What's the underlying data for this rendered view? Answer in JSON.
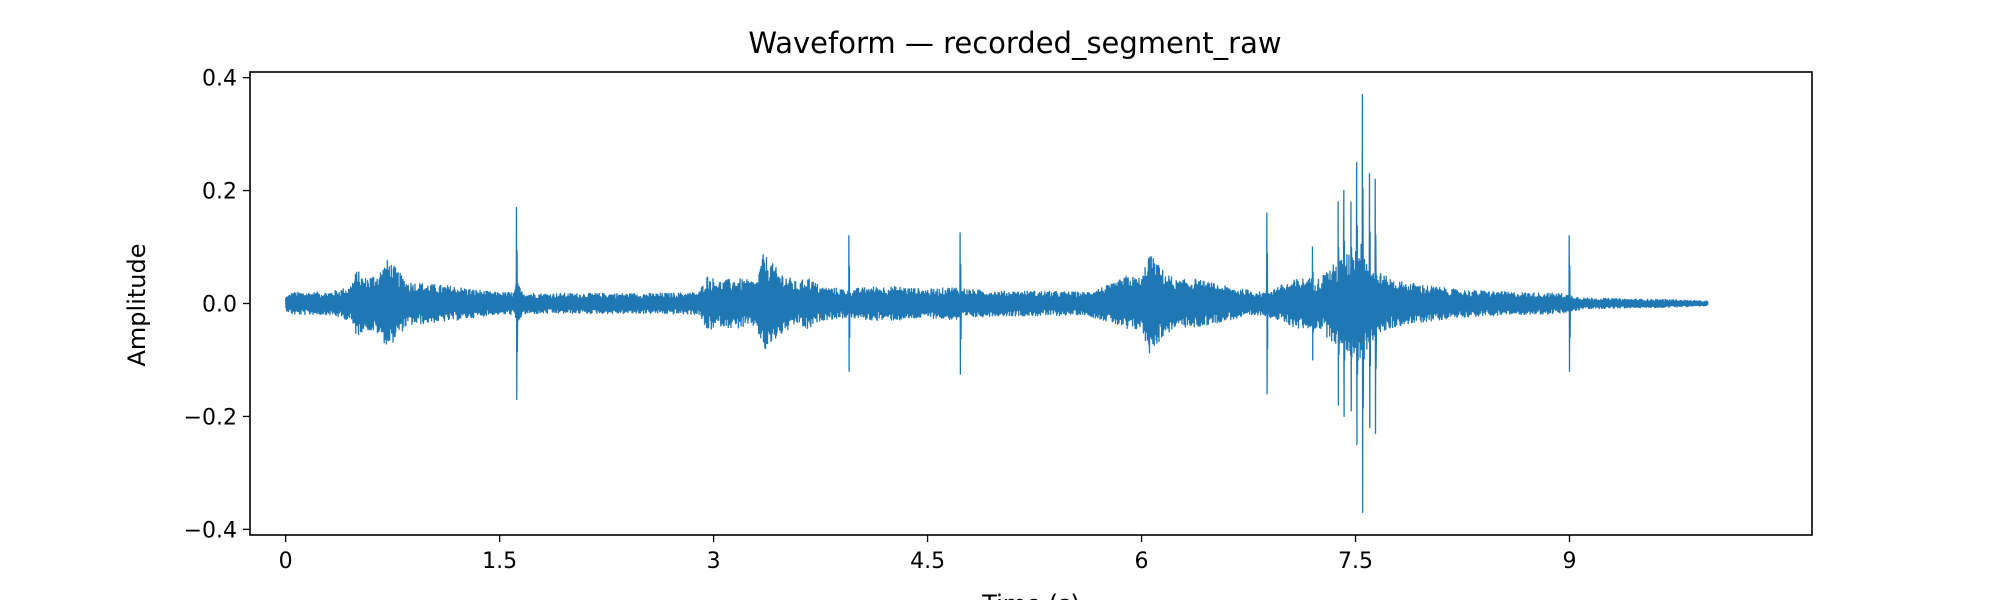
{
  "chart_data": {
    "type": "line",
    "title": "Waveform — recorded_segment_raw",
    "xlabel": "Time (s)",
    "ylabel": "Amplitude",
    "xlim": [
      -0.25,
      10.7
    ],
    "ylim": [
      -0.41,
      0.41
    ],
    "grid": false,
    "x_ticks": [
      {
        "value": 0,
        "label": "0"
      },
      {
        "value": 1.5,
        "label": "1.5"
      },
      {
        "value": 3,
        "label": "3"
      },
      {
        "value": 4.5,
        "label": "4.5"
      },
      {
        "value": 6,
        "label": "6"
      },
      {
        "value": 7.5,
        "label": "7.5"
      },
      {
        "value": 9,
        "label": "9"
      }
    ],
    "y_ticks": [
      {
        "value": 0.4,
        "label": "0.4"
      },
      {
        "value": 0.2,
        "label": "0.2"
      },
      {
        "value": 0.0,
        "label": "0.0"
      },
      {
        "value": -0.2,
        "label": "−0.2"
      },
      {
        "value": -0.4,
        "label": "−0.4"
      }
    ],
    "series": [
      {
        "color": "#1f77b4",
        "duration": 9.97,
        "envelope": {
          "x": [
            0.0,
            0.05,
            0.3,
            0.45,
            0.5,
            0.55,
            0.65,
            0.72,
            0.78,
            0.85,
            1.0,
            1.2,
            1.45,
            1.6,
            1.62,
            1.66,
            1.8,
            2.2,
            2.6,
            2.9,
            2.95,
            3.05,
            3.15,
            3.3,
            3.35,
            3.45,
            3.6,
            3.65,
            3.75,
            3.95,
            4.1,
            4.3,
            4.5,
            4.7,
            4.8,
            5.0,
            5.3,
            5.6,
            5.8,
            5.9,
            6.0,
            6.05,
            6.15,
            6.25,
            6.35,
            6.6,
            6.8,
            6.85,
            6.95,
            7.1,
            7.25,
            7.3,
            7.45,
            7.55,
            7.6,
            7.7,
            7.8,
            8.2,
            8.6,
            8.95,
            9.1,
            9.4,
            9.7,
            9.97
          ],
          "amp": [
            0.012,
            0.02,
            0.02,
            0.03,
            0.06,
            0.045,
            0.055,
            0.08,
            0.06,
            0.04,
            0.035,
            0.03,
            0.02,
            0.02,
            0.04,
            0.02,
            0.018,
            0.018,
            0.018,
            0.02,
            0.05,
            0.04,
            0.045,
            0.04,
            0.09,
            0.06,
            0.035,
            0.05,
            0.03,
            0.025,
            0.03,
            0.03,
            0.025,
            0.03,
            0.025,
            0.022,
            0.022,
            0.02,
            0.035,
            0.05,
            0.045,
            0.09,
            0.06,
            0.04,
            0.045,
            0.03,
            0.022,
            0.02,
            0.03,
            0.045,
            0.045,
            0.06,
            0.09,
            0.11,
            0.07,
            0.05,
            0.04,
            0.025,
            0.02,
            0.018,
            0.01,
            0.008,
            0.007,
            0.004
          ]
        },
        "peaks": [
          {
            "t": 1.62,
            "pos": 0.17,
            "neg": -0.17
          },
          {
            "t": 3.95,
            "pos": 0.12,
            "neg": -0.12
          },
          {
            "t": 4.73,
            "pos": 0.125,
            "neg": -0.125
          },
          {
            "t": 6.88,
            "pos": 0.16,
            "neg": -0.16
          },
          {
            "t": 7.2,
            "pos": 0.1,
            "neg": -0.1
          },
          {
            "t": 7.38,
            "pos": 0.18,
            "neg": -0.18
          },
          {
            "t": 7.42,
            "pos": 0.2,
            "neg": -0.2
          },
          {
            "t": 7.47,
            "pos": 0.18,
            "neg": -0.19
          },
          {
            "t": 7.51,
            "pos": 0.25,
            "neg": -0.25
          },
          {
            "t": 7.55,
            "pos": 0.37,
            "neg": -0.37
          },
          {
            "t": 7.6,
            "pos": 0.23,
            "neg": -0.22
          },
          {
            "t": 7.64,
            "pos": 0.22,
            "neg": -0.23
          },
          {
            "t": 9.0,
            "pos": 0.12,
            "neg": -0.12
          }
        ]
      }
    ]
  }
}
